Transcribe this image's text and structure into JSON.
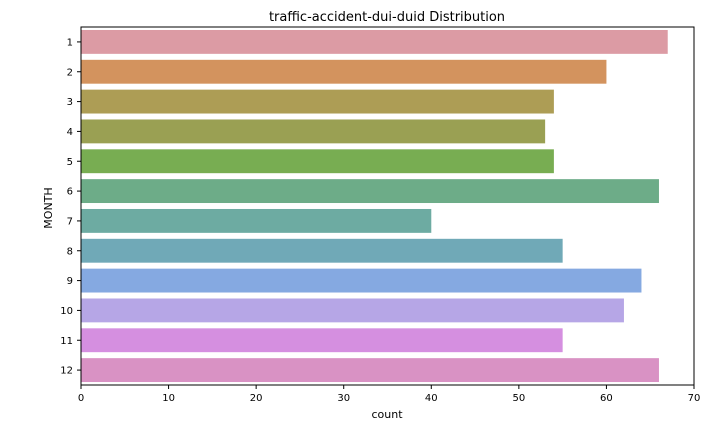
{
  "chart_data": {
    "type": "bar",
    "orientation": "horizontal",
    "title": "traffic-accident-dui-duid Distribution",
    "xlabel": "count",
    "ylabel": "MONTH",
    "categories": [
      "1",
      "2",
      "3",
      "4",
      "5",
      "6",
      "7",
      "8",
      "9",
      "10",
      "11",
      "12"
    ],
    "values": [
      67,
      60,
      54,
      53,
      54,
      66,
      40,
      55,
      64,
      62,
      55,
      66
    ],
    "xlim": [
      0,
      70
    ],
    "xticks": [
      0,
      10,
      20,
      30,
      40,
      50,
      60,
      70
    ],
    "grid": false,
    "legend": "none",
    "colors": [
      "#dc9ba4",
      "#d3935e",
      "#ad9d55",
      "#9aa053",
      "#78ad52",
      "#6dac88",
      "#6daba2",
      "#70a9b7",
      "#85a9e1",
      "#b6a6e6",
      "#d58fe0",
      "#d992c4"
    ]
  }
}
